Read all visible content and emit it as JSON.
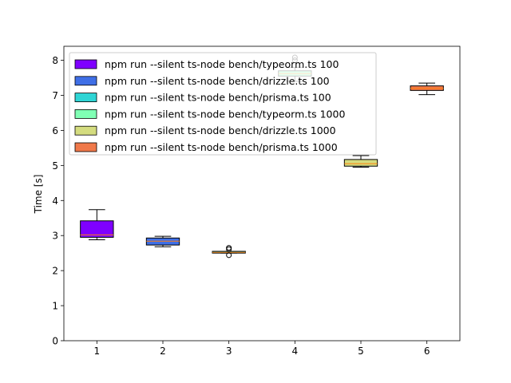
{
  "chart_data": {
    "type": "box",
    "title": "",
    "xlabel": "",
    "ylabel": "Time [s]",
    "ylim": [
      0,
      8.4
    ],
    "xlim": [
      0.5,
      6.5
    ],
    "x_ticks": [
      "1",
      "2",
      "3",
      "4",
      "5",
      "6"
    ],
    "y_ticks": [
      "0",
      "1",
      "2",
      "3",
      "4",
      "5",
      "6",
      "7",
      "8"
    ],
    "grid": false,
    "legend_position": "top-left",
    "series": [
      {
        "name": "npm run --silent ts-node bench/typeorm.ts 100",
        "color": "#7f00ff",
        "x": 1,
        "whisker_low": 2.88,
        "q1": 2.95,
        "median": 3.02,
        "q3": 3.42,
        "whisker_high": 3.74,
        "outliers": []
      },
      {
        "name": "npm run --silent ts-node bench/drizzle.ts 100",
        "color": "#3f6fe6",
        "x": 2,
        "whisker_low": 2.68,
        "q1": 2.73,
        "median": 2.84,
        "q3": 2.93,
        "whisker_high": 2.98,
        "outliers": []
      },
      {
        "name": "npm run --silent ts-node bench/prisma.ts 100",
        "color": "#2fd5d5",
        "x": 3,
        "whisker_low": 2.5,
        "q1": 2.5,
        "median": 2.52,
        "q3": 2.55,
        "whisker_high": 2.55,
        "outliers": [
          2.44,
          2.61,
          2.65
        ]
      },
      {
        "name": "npm run --silent ts-node bench/typeorm.ts 1000",
        "color": "#80ffb4",
        "x": 4,
        "whisker_low": 7.4,
        "q1": 7.55,
        "median": 7.62,
        "q3": 7.7,
        "whisker_high": 7.8,
        "outliers": [
          8.0,
          8.08
        ]
      },
      {
        "name": "npm run --silent ts-node bench/drizzle.ts 1000",
        "color": "#d4dc7f",
        "x": 5,
        "whisker_low": 4.95,
        "q1": 4.98,
        "median": 5.05,
        "q3": 5.17,
        "whisker_high": 5.28,
        "outliers": []
      },
      {
        "name": "npm run --silent ts-node bench/prisma.ts 1000",
        "color": "#f0794a",
        "x": 6,
        "whisker_low": 7.02,
        "q1": 7.14,
        "median": 7.2,
        "q3": 7.27,
        "whisker_high": 7.35,
        "outliers": []
      }
    ]
  }
}
